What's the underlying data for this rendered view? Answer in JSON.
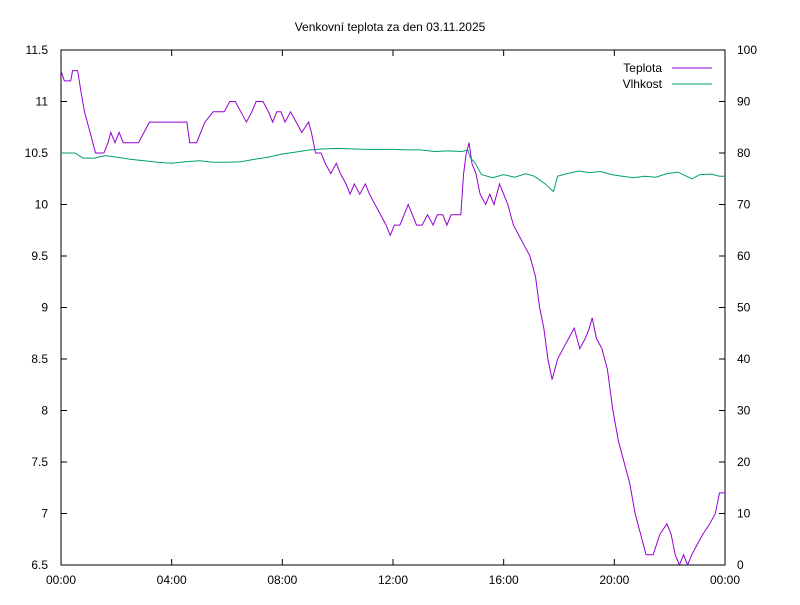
{
  "chart_data": {
    "type": "line",
    "title": "Venkovní teplota za den 03.11.2025",
    "xlabel": "",
    "ylabel": "",
    "x_ticks": [
      "00:00",
      "04:00",
      "08:00",
      "12:00",
      "16:00",
      "20:00",
      "00:00"
    ],
    "xlim_hours": [
      0,
      24
    ],
    "y_left": {
      "ylim": [
        6.5,
        11.5
      ],
      "ticks": [
        "6.5",
        "7",
        "7.5",
        "8",
        "8.5",
        "9",
        "9.5",
        "10",
        "10.5",
        "11",
        "11.5"
      ]
    },
    "y_right": {
      "ylim": [
        0,
        100
      ],
      "ticks": [
        "0",
        "10",
        "20",
        "30",
        "40",
        "50",
        "60",
        "70",
        "80",
        "90",
        "100"
      ]
    },
    "grid": false,
    "legend": "top-right",
    "series": [
      {
        "name": "Teplota",
        "axis": "left",
        "color": "#9400d3",
        "points": [
          [
            0.0,
            11.3
          ],
          [
            0.12,
            11.2
          ],
          [
            0.35,
            11.2
          ],
          [
            0.42,
            11.3
          ],
          [
            0.6,
            11.3
          ],
          [
            0.72,
            11.1
          ],
          [
            0.85,
            10.9
          ],
          [
            0.95,
            10.8
          ],
          [
            1.05,
            10.7
          ],
          [
            1.15,
            10.6
          ],
          [
            1.25,
            10.5
          ],
          [
            1.55,
            10.5
          ],
          [
            1.7,
            10.6
          ],
          [
            1.8,
            10.7
          ],
          [
            1.95,
            10.6
          ],
          [
            2.1,
            10.7
          ],
          [
            2.25,
            10.6
          ],
          [
            2.5,
            10.6
          ],
          [
            2.8,
            10.6
          ],
          [
            3.0,
            10.7
          ],
          [
            3.2,
            10.8
          ],
          [
            3.6,
            10.8
          ],
          [
            4.0,
            10.8
          ],
          [
            4.55,
            10.8
          ],
          [
            4.6,
            10.7
          ],
          [
            4.65,
            10.6
          ],
          [
            4.9,
            10.6
          ],
          [
            5.05,
            10.7
          ],
          [
            5.2,
            10.8
          ],
          [
            5.5,
            10.9
          ],
          [
            5.7,
            10.9
          ],
          [
            5.9,
            10.9
          ],
          [
            6.1,
            11.0
          ],
          [
            6.3,
            11.0
          ],
          [
            6.5,
            10.9
          ],
          [
            6.7,
            10.8
          ],
          [
            6.9,
            10.9
          ],
          [
            7.05,
            11.0
          ],
          [
            7.3,
            11.0
          ],
          [
            7.5,
            10.9
          ],
          [
            7.65,
            10.8
          ],
          [
            7.8,
            10.9
          ],
          [
            7.95,
            10.9
          ],
          [
            8.1,
            10.8
          ],
          [
            8.3,
            10.9
          ],
          [
            8.5,
            10.8
          ],
          [
            8.7,
            10.7
          ],
          [
            8.95,
            10.8
          ],
          [
            9.05,
            10.7
          ],
          [
            9.2,
            10.5
          ],
          [
            9.4,
            10.5
          ],
          [
            9.55,
            10.4
          ],
          [
            9.75,
            10.3
          ],
          [
            9.95,
            10.4
          ],
          [
            10.1,
            10.3
          ],
          [
            10.3,
            10.2
          ],
          [
            10.45,
            10.1
          ],
          [
            10.6,
            10.2
          ],
          [
            10.8,
            10.1
          ],
          [
            11.0,
            10.2
          ],
          [
            11.15,
            10.1
          ],
          [
            11.35,
            10.0
          ],
          [
            11.55,
            9.9
          ],
          [
            11.75,
            9.8
          ],
          [
            11.9,
            9.7
          ],
          [
            12.05,
            9.8
          ],
          [
            12.25,
            9.8
          ],
          [
            12.4,
            9.9
          ],
          [
            12.55,
            10.0
          ],
          [
            12.7,
            9.9
          ],
          [
            12.85,
            9.8
          ],
          [
            13.05,
            9.8
          ],
          [
            13.25,
            9.9
          ],
          [
            13.45,
            9.8
          ],
          [
            13.6,
            9.9
          ],
          [
            13.8,
            9.9
          ],
          [
            13.95,
            9.8
          ],
          [
            14.1,
            9.9
          ],
          [
            14.3,
            9.9
          ],
          [
            14.45,
            9.9
          ],
          [
            14.55,
            10.3
          ],
          [
            14.65,
            10.5
          ],
          [
            14.75,
            10.6
          ],
          [
            14.85,
            10.4
          ],
          [
            15.0,
            10.3
          ],
          [
            15.15,
            10.1
          ],
          [
            15.35,
            10.0
          ],
          [
            15.5,
            10.1
          ],
          [
            15.65,
            10.0
          ],
          [
            15.85,
            10.2
          ],
          [
            16.0,
            10.1
          ],
          [
            16.15,
            10.0
          ],
          [
            16.35,
            9.8
          ],
          [
            16.55,
            9.7
          ],
          [
            16.75,
            9.6
          ],
          [
            16.95,
            9.5
          ],
          [
            17.15,
            9.3
          ],
          [
            17.3,
            9.0
          ],
          [
            17.45,
            8.8
          ],
          [
            17.6,
            8.5
          ],
          [
            17.75,
            8.3
          ],
          [
            17.95,
            8.5
          ],
          [
            18.15,
            8.6
          ],
          [
            18.35,
            8.7
          ],
          [
            18.55,
            8.8
          ],
          [
            18.75,
            8.6
          ],
          [
            18.95,
            8.7
          ],
          [
            19.1,
            8.8
          ],
          [
            19.2,
            8.9
          ],
          [
            19.35,
            8.7
          ],
          [
            19.55,
            8.6
          ],
          [
            19.75,
            8.4
          ],
          [
            19.95,
            8.0
          ],
          [
            20.15,
            7.7
          ],
          [
            20.35,
            7.5
          ],
          [
            20.55,
            7.3
          ],
          [
            20.75,
            7.0
          ],
          [
            20.95,
            6.8
          ],
          [
            21.15,
            6.6
          ],
          [
            21.4,
            6.6
          ],
          [
            21.65,
            6.8
          ],
          [
            21.9,
            6.9
          ],
          [
            22.05,
            6.8
          ],
          [
            22.2,
            6.6
          ],
          [
            22.35,
            6.5
          ],
          [
            22.5,
            6.6
          ],
          [
            22.65,
            6.5
          ],
          [
            22.8,
            6.6
          ],
          [
            23.0,
            6.7
          ],
          [
            23.2,
            6.8
          ],
          [
            23.45,
            6.9
          ],
          [
            23.65,
            7.0
          ],
          [
            23.8,
            7.2
          ],
          [
            24.0,
            7.2
          ]
        ]
      },
      {
        "name": "Vlhkost",
        "axis": "right",
        "color": "#009e73",
        "points": [
          [
            0.0,
            80
          ],
          [
            0.5,
            80
          ],
          [
            0.8,
            79
          ],
          [
            1.2,
            79
          ],
          [
            1.6,
            79.5
          ],
          [
            2.0,
            79.2
          ],
          [
            2.5,
            78.8
          ],
          [
            3.0,
            78.5
          ],
          [
            3.5,
            78.2
          ],
          [
            4.0,
            78
          ],
          [
            4.5,
            78.3
          ],
          [
            5.0,
            78.5
          ],
          [
            5.5,
            78.2
          ],
          [
            6.0,
            78.2
          ],
          [
            6.5,
            78.3
          ],
          [
            7.0,
            78.8
          ],
          [
            7.5,
            79.2
          ],
          [
            8.0,
            79.8
          ],
          [
            8.5,
            80.2
          ],
          [
            9.0,
            80.6
          ],
          [
            9.5,
            80.8
          ],
          [
            10.0,
            80.9
          ],
          [
            10.5,
            80.8
          ],
          [
            11.0,
            80.7
          ],
          [
            11.5,
            80.7
          ],
          [
            12.0,
            80.7
          ],
          [
            12.5,
            80.6
          ],
          [
            13.0,
            80.6
          ],
          [
            13.5,
            80.3
          ],
          [
            14.0,
            80.4
          ],
          [
            14.5,
            80.3
          ],
          [
            14.7,
            80.6
          ],
          [
            14.8,
            79
          ],
          [
            14.95,
            78.2
          ],
          [
            15.2,
            75.8
          ],
          [
            15.6,
            75.2
          ],
          [
            16.0,
            75.8
          ],
          [
            16.4,
            75.3
          ],
          [
            16.8,
            76
          ],
          [
            17.1,
            75.5
          ],
          [
            17.5,
            74
          ],
          [
            17.7,
            73
          ],
          [
            17.8,
            72.5
          ],
          [
            17.95,
            75.5
          ],
          [
            18.3,
            76
          ],
          [
            18.7,
            76.5
          ],
          [
            19.1,
            76.2
          ],
          [
            19.5,
            76.4
          ],
          [
            19.9,
            75.8
          ],
          [
            20.3,
            75.5
          ],
          [
            20.7,
            75.2
          ],
          [
            21.1,
            75.5
          ],
          [
            21.5,
            75.3
          ],
          [
            21.9,
            76
          ],
          [
            22.3,
            76.3
          ],
          [
            22.6,
            75.5
          ],
          [
            22.8,
            75
          ],
          [
            23.1,
            75.8
          ],
          [
            23.5,
            75.9
          ],
          [
            23.8,
            75.5
          ],
          [
            24.0,
            75.5
          ]
        ]
      }
    ]
  }
}
